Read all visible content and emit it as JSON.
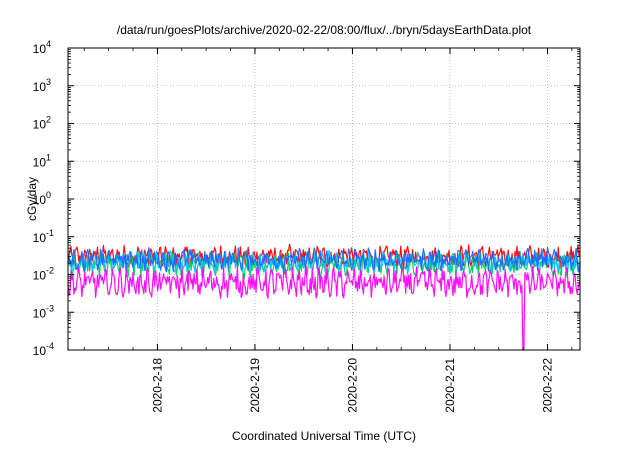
{
  "chart_data": {
    "type": "line",
    "title": "/data/run/goesPlots/archive/2020-02-22/08:00/flux/../bryn/5daysEarthData.plot",
    "xlabel": "Coordinated Universal Time (UTC)",
    "ylabel": "cGy/day",
    "yscale": "log",
    "ylim": [
      0.0001,
      10000
    ],
    "y_ticks": [
      {
        "value": 0.0001,
        "base": "10",
        "exp": "-4"
      },
      {
        "value": 0.001,
        "base": "10",
        "exp": "-3"
      },
      {
        "value": 0.01,
        "base": "10",
        "exp": "-2"
      },
      {
        "value": 0.1,
        "base": "10",
        "exp": "-1"
      },
      {
        "value": 1,
        "base": "10",
        "exp": "0"
      },
      {
        "value": 10,
        "base": "10",
        "exp": "1"
      },
      {
        "value": 100,
        "base": "10",
        "exp": "2"
      },
      {
        "value": 1000,
        "base": "10",
        "exp": "3"
      },
      {
        "value": 10000,
        "base": "10",
        "exp": "4"
      }
    ],
    "xlim": [
      "2020-02-17 02:00",
      "2020-02-22 08:00"
    ],
    "x_ticks": [
      {
        "value": "2020-02-18 00:00",
        "label": "2020-2-18"
      },
      {
        "value": "2020-02-19 00:00",
        "label": "2020-2-19"
      },
      {
        "value": "2020-02-20 00:00",
        "label": "2020-2-20"
      },
      {
        "value": "2020-02-21 00:00",
        "label": "2020-2-21"
      },
      {
        "value": "2020-02-22 00:00",
        "label": "2020-2-22"
      }
    ],
    "grid": true,
    "series": [
      {
        "color": "#ff0000",
        "baseline": 0.03,
        "spread": 0.22
      },
      {
        "color": "#00cc66",
        "baseline": 0.018,
        "spread": 0.25
      },
      {
        "color": "#00c8ff",
        "baseline": 0.022,
        "spread": 0.2
      },
      {
        "color": "#1f66ff",
        "baseline": 0.025,
        "spread": 0.22
      },
      {
        "color": "#ff00ff",
        "baseline": 0.006,
        "spread": 0.3
      }
    ],
    "annotations": [
      {
        "series_color": "#ff00ff",
        "x": "2020-02-21 18:00",
        "y": 0.0001,
        "note": "drop"
      }
    ]
  }
}
